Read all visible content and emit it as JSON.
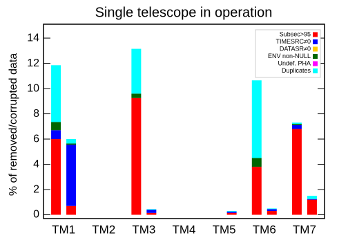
{
  "chart_data": {
    "type": "stacked-bar",
    "title": "Single telescope in operation",
    "y_label": "% of removed/corrupted data",
    "categories": [
      "TM1",
      null,
      "TM2",
      null,
      "TM3",
      null,
      "TM4",
      null,
      "TM5",
      null,
      "TM6",
      null,
      "TM7",
      null
    ],
    "series": [
      {
        "name": "Subsec>95",
        "color": "#ff0000",
        "values": [
          6.0,
          0.7,
          0,
          0,
          9.25,
          0.15,
          0,
          0,
          0,
          0.15,
          3.8,
          0.3,
          6.8,
          1.2
        ]
      },
      {
        "name": "TIMESRC≠0",
        "color": "#0000ff",
        "values": [
          0.7,
          4.85,
          0,
          0,
          0,
          0.25,
          0,
          0,
          0,
          0.1,
          0,
          0.15,
          0.3,
          0.05
        ]
      },
      {
        "name": "DATASR≠0",
        "color": "#ffcc00",
        "values": [
          0,
          0,
          0,
          0,
          0,
          0,
          0,
          0,
          0,
          0,
          0,
          0,
          0,
          0
        ]
      },
      {
        "name": "ENV non-NULL",
        "color": "#006600",
        "values": [
          0.65,
          0.1,
          0,
          0,
          0.35,
          0,
          0,
          0,
          0,
          0,
          0.7,
          0,
          0.1,
          0
        ]
      },
      {
        "name": "Undef. PHA",
        "color": "#ff00ff",
        "values": [
          0,
          0,
          0,
          0,
          0,
          0,
          0,
          0,
          0,
          0,
          0,
          0,
          0,
          0
        ]
      },
      {
        "name": "Duplicates",
        "color": "#00ffff",
        "values": [
          4.5,
          0.35,
          0,
          0,
          3.55,
          0.05,
          0,
          0,
          0,
          0.05,
          6.15,
          0.05,
          0.1,
          0.25
        ]
      }
    ],
    "ylim": [
      -0.3,
      15.1
    ],
    "yticks": [
      0,
      2,
      4,
      6,
      8,
      10,
      12,
      14
    ],
    "legend": "top-right"
  }
}
